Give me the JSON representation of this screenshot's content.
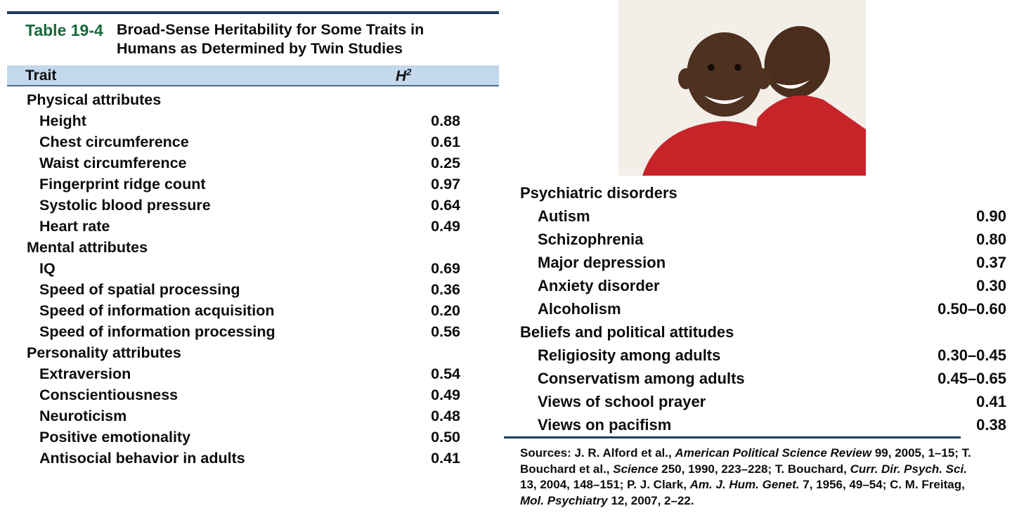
{
  "table": {
    "label": "Table 19-4",
    "title_line1": "Broad-Sense Heritability for Some Traits in",
    "title_line2": "Humans as Determined by Twin Studies",
    "columns": {
      "trait": "Trait",
      "h2_base": "H",
      "h2_sup": "2"
    },
    "accent_green": "#17683a",
    "header_band_color": "#c4d8eb",
    "rule_color": "#1d3c5a"
  },
  "left_sections": [
    {
      "heading": "Physical attributes",
      "rows": [
        {
          "trait": "Height",
          "value": "0.88"
        },
        {
          "trait": "Chest circumference",
          "value": "0.61"
        },
        {
          "trait": "Waist circumference",
          "value": "0.25"
        },
        {
          "trait": "Fingerprint ridge count",
          "value": "0.97"
        },
        {
          "trait": "Systolic blood pressure",
          "value": "0.64"
        },
        {
          "trait": "Heart rate",
          "value": "0.49"
        }
      ]
    },
    {
      "heading": "Mental attributes",
      "rows": [
        {
          "trait": "IQ",
          "value": "0.69"
        },
        {
          "trait": "Speed of spatial processing",
          "value": "0.36"
        },
        {
          "trait": "Speed of information acquisition",
          "value": "0.20"
        },
        {
          "trait": "Speed of information processing",
          "value": "0.56"
        }
      ]
    },
    {
      "heading": "Personality attributes",
      "rows": [
        {
          "trait": "Extraversion",
          "value": "0.54"
        },
        {
          "trait": "Conscientiousness",
          "value": "0.49"
        },
        {
          "trait": "Neuroticism",
          "value": "0.48"
        },
        {
          "trait": "Positive emotionality",
          "value": "0.50"
        },
        {
          "trait": "Antisocial behavior in adults",
          "value": "0.41"
        }
      ]
    }
  ],
  "right_sections": [
    {
      "heading": "Psychiatric disorders",
      "rows": [
        {
          "trait": "Autism",
          "value": "0.90"
        },
        {
          "trait": "Schizophrenia",
          "value": "0.80"
        },
        {
          "trait": "Major depression",
          "value": "0.37"
        },
        {
          "trait": "Anxiety disorder",
          "value": "0.30"
        },
        {
          "trait": "Alcoholism",
          "value": "0.50–0.60"
        }
      ]
    },
    {
      "heading": "Beliefs and political attitudes",
      "rows": [
        {
          "trait": "Religiosity among adults",
          "value": "0.30–0.45"
        },
        {
          "trait": "Conservatism among adults",
          "value": "0.45–0.65"
        },
        {
          "trait": "Views of school prayer",
          "value": "0.41"
        },
        {
          "trait": "Views on pacifism",
          "value": "0.38"
        }
      ]
    }
  ],
  "sources": {
    "label": "Sources:",
    "segments": [
      {
        "text": " J. R. Alford et al., ",
        "italic": false
      },
      {
        "text": "American Political Science Review",
        "italic": true
      },
      {
        "text": " 99, 2005, 1–15; T. Bouchard et al., ",
        "italic": false
      },
      {
        "text": "Science",
        "italic": true
      },
      {
        "text": " 250, 1990, 223–228; T. Bouchard, ",
        "italic": false
      },
      {
        "text": "Curr. Dir. Psych. Sci.",
        "italic": true
      },
      {
        "text": " 13, 2004, 148–151; P. J. Clark, ",
        "italic": false
      },
      {
        "text": "Am. J. Hum. Genet.",
        "italic": true
      },
      {
        "text": " 7, 1956, 49–54; C. M. Freitag, ",
        "italic": false
      },
      {
        "text": "Mol. Psychiatry",
        "italic": true
      },
      {
        "text": " 12, 2007, 2–22.",
        "italic": false
      }
    ]
  },
  "photo": {
    "description": "Two smiling twin boys wearing red shirts",
    "shirt_color": "#c9232a",
    "skin_color": "#4f311f",
    "background_color": "#f3efe8"
  },
  "chart_data": {
    "type": "table",
    "title": "Table 19-4 Broad-Sense Heritability for Some Traits in Humans as Determined by Twin Studies",
    "columns": [
      "Trait",
      "H2"
    ],
    "rows": [
      [
        "Physical attributes",
        ""
      ],
      [
        "Height",
        "0.88"
      ],
      [
        "Chest circumference",
        "0.61"
      ],
      [
        "Waist circumference",
        "0.25"
      ],
      [
        "Fingerprint ridge count",
        "0.97"
      ],
      [
        "Systolic blood pressure",
        "0.64"
      ],
      [
        "Heart rate",
        "0.49"
      ],
      [
        "Mental attributes",
        ""
      ],
      [
        "IQ",
        "0.69"
      ],
      [
        "Speed of spatial processing",
        "0.36"
      ],
      [
        "Speed of information acquisition",
        "0.20"
      ],
      [
        "Speed of information processing",
        "0.56"
      ],
      [
        "Personality attributes",
        ""
      ],
      [
        "Extraversion",
        "0.54"
      ],
      [
        "Conscientiousness",
        "0.49"
      ],
      [
        "Neuroticism",
        "0.48"
      ],
      [
        "Positive emotionality",
        "0.50"
      ],
      [
        "Antisocial behavior in adults",
        "0.41"
      ],
      [
        "Psychiatric disorders",
        ""
      ],
      [
        "Autism",
        "0.90"
      ],
      [
        "Schizophrenia",
        "0.80"
      ],
      [
        "Major depression",
        "0.37"
      ],
      [
        "Anxiety disorder",
        "0.30"
      ],
      [
        "Alcoholism",
        "0.50–0.60"
      ],
      [
        "Beliefs and political attitudes",
        ""
      ],
      [
        "Religiosity among adults",
        "0.30–0.45"
      ],
      [
        "Conservatism among adults",
        "0.45–0.65"
      ],
      [
        "Views of school prayer",
        "0.41"
      ],
      [
        "Views on pacifism",
        "0.38"
      ]
    ]
  }
}
